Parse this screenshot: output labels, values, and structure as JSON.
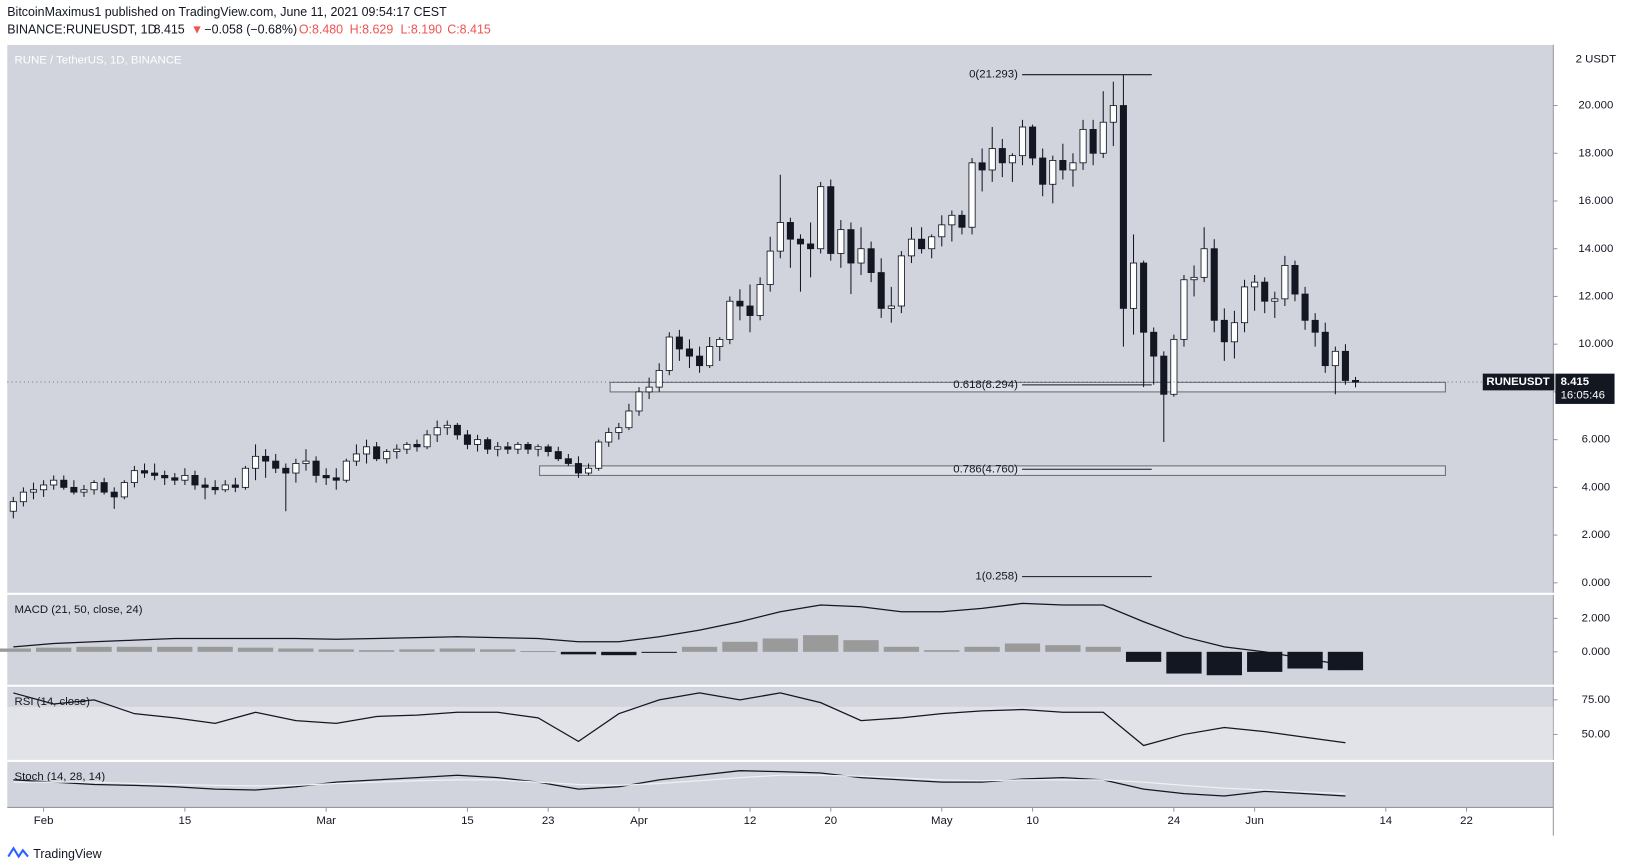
{
  "header": {
    "publisher": "BitcoinMaximus1 published on TradingView.com, June 11, 2021 09:54:17 CEST",
    "symbol": "BINANCE:RUNEUSDT, 1D",
    "last": "8.415",
    "arrow": "▼",
    "change": "−0.058 (−0.68%)",
    "ohlc": [
      "O:8.480",
      "H:8.629",
      "L:8.190",
      "C:8.415"
    ]
  },
  "footer": {
    "brand": "TradingView"
  },
  "chart_data": [
    {
      "type": "candlestick",
      "title": "RUNE / TetherUS, 1D, BINANCE",
      "unit_label": "2 USDT",
      "up_color": "#ffffff",
      "down_color": "#131722",
      "candles": [
        [
          3.0,
          3.6,
          2.7,
          3.4
        ],
        [
          3.4,
          4.0,
          3.2,
          3.8
        ],
        [
          3.8,
          4.2,
          3.5,
          3.9
        ],
        [
          3.9,
          4.3,
          3.6,
          4.1
        ],
        [
          4.1,
          4.5,
          3.9,
          4.3
        ],
        [
          4.3,
          4.5,
          3.9,
          4.0
        ],
        [
          4.0,
          4.3,
          3.7,
          3.8
        ],
        [
          3.8,
          4.1,
          3.6,
          3.9
        ],
        [
          3.9,
          4.3,
          3.7,
          4.2
        ],
        [
          4.2,
          4.4,
          3.7,
          3.8
        ],
        [
          3.8,
          4.0,
          3.1,
          3.6
        ],
        [
          3.6,
          4.3,
          3.5,
          4.2
        ],
        [
          4.2,
          4.9,
          4.0,
          4.7
        ],
        [
          4.7,
          5.0,
          4.4,
          4.6
        ],
        [
          4.6,
          5.0,
          4.3,
          4.5
        ],
        [
          4.5,
          4.7,
          4.1,
          4.4
        ],
        [
          4.4,
          4.6,
          4.1,
          4.3
        ],
        [
          4.3,
          4.8,
          4.1,
          4.5
        ],
        [
          4.5,
          4.7,
          3.9,
          4.1
        ],
        [
          4.1,
          4.4,
          3.5,
          4.0
        ],
        [
          4.0,
          4.3,
          3.7,
          3.9
        ],
        [
          3.9,
          4.3,
          3.8,
          4.1
        ],
        [
          4.1,
          4.4,
          3.8,
          4.0
        ],
        [
          4.0,
          4.9,
          3.9,
          4.8
        ],
        [
          4.8,
          5.8,
          4.3,
          5.3
        ],
        [
          5.3,
          5.6,
          4.4,
          5.1
        ],
        [
          5.1,
          5.4,
          4.6,
          4.8
        ],
        [
          4.8,
          5.0,
          3.0,
          4.6
        ],
        [
          4.6,
          5.2,
          4.2,
          5.0
        ],
        [
          5.0,
          5.6,
          4.7,
          5.1
        ],
        [
          5.1,
          5.3,
          4.2,
          4.5
        ],
        [
          4.5,
          4.8,
          4.1,
          4.4
        ],
        [
          4.4,
          4.8,
          3.9,
          4.3
        ],
        [
          4.3,
          5.2,
          4.2,
          5.1
        ],
        [
          5.1,
          5.8,
          4.9,
          5.4
        ],
        [
          5.4,
          6.0,
          5.0,
          5.7
        ],
        [
          5.7,
          5.9,
          5.1,
          5.2
        ],
        [
          5.2,
          5.6,
          5.0,
          5.5
        ],
        [
          5.5,
          5.8,
          5.2,
          5.6
        ],
        [
          5.6,
          5.9,
          5.4,
          5.8
        ],
        [
          5.8,
          6.0,
          5.5,
          5.7
        ],
        [
          5.7,
          6.4,
          5.6,
          6.2
        ],
        [
          6.2,
          6.8,
          5.9,
          6.5
        ],
        [
          6.5,
          6.8,
          6.2,
          6.6
        ],
        [
          6.6,
          6.7,
          6.0,
          6.2
        ],
        [
          6.2,
          6.4,
          5.6,
          5.8
        ],
        [
          5.8,
          6.2,
          5.5,
          6.0
        ],
        [
          6.0,
          6.1,
          5.4,
          5.6
        ],
        [
          5.6,
          5.9,
          5.3,
          5.7
        ],
        [
          5.7,
          5.9,
          5.4,
          5.6
        ],
        [
          5.6,
          5.9,
          5.4,
          5.8
        ],
        [
          5.8,
          5.9,
          5.4,
          5.6
        ],
        [
          5.6,
          5.8,
          5.3,
          5.7
        ],
        [
          5.7,
          5.8,
          5.3,
          5.5
        ],
        [
          5.5,
          5.7,
          5.1,
          5.2
        ],
        [
          5.2,
          5.4,
          4.9,
          5.0
        ],
        [
          5.0,
          5.3,
          4.4,
          4.6
        ],
        [
          4.6,
          5.0,
          4.5,
          4.8
        ],
        [
          4.8,
          6.0,
          4.7,
          5.9
        ],
        [
          5.9,
          6.5,
          5.7,
          6.3
        ],
        [
          6.3,
          6.7,
          6.0,
          6.5
        ],
        [
          6.5,
          7.5,
          6.4,
          7.2
        ],
        [
          7.2,
          8.2,
          7.0,
          8.0
        ],
        [
          8.0,
          8.6,
          7.7,
          8.2
        ],
        [
          8.2,
          9.2,
          8.0,
          8.9
        ],
        [
          8.9,
          10.5,
          8.7,
          10.3
        ],
        [
          10.3,
          10.6,
          9.3,
          9.8
        ],
        [
          9.8,
          10.2,
          9.0,
          9.5
        ],
        [
          9.5,
          9.9,
          8.8,
          9.1
        ],
        [
          9.1,
          10.3,
          9.0,
          9.9
        ],
        [
          9.9,
          10.3,
          9.3,
          10.2
        ],
        [
          10.2,
          12.0,
          10.0,
          11.8
        ],
        [
          11.8,
          12.3,
          11.0,
          11.6
        ],
        [
          11.6,
          12.5,
          10.5,
          11.2
        ],
        [
          11.2,
          12.8,
          11.0,
          12.5
        ],
        [
          12.5,
          14.5,
          12.2,
          13.9
        ],
        [
          13.9,
          17.1,
          13.6,
          15.1
        ],
        [
          15.1,
          15.3,
          13.2,
          14.4
        ],
        [
          14.4,
          14.6,
          12.2,
          14.2
        ],
        [
          14.2,
          15.1,
          12.8,
          14.0
        ],
        [
          14.0,
          16.8,
          13.8,
          16.6
        ],
        [
          16.6,
          16.9,
          13.5,
          13.8
        ],
        [
          13.8,
          15.2,
          13.2,
          14.8
        ],
        [
          14.8,
          15.1,
          12.1,
          13.4
        ],
        [
          13.4,
          14.9,
          12.9,
          14.0
        ],
        [
          14.0,
          14.3,
          12.6,
          13.0
        ],
        [
          13.0,
          13.6,
          11.1,
          11.5
        ],
        [
          11.5,
          12.4,
          10.9,
          11.6
        ],
        [
          11.6,
          13.9,
          11.3,
          13.7
        ],
        [
          13.7,
          14.9,
          13.4,
          14.4
        ],
        [
          14.4,
          14.9,
          13.8,
          14.0
        ],
        [
          14.0,
          14.6,
          13.6,
          14.5
        ],
        [
          14.5,
          15.4,
          14.1,
          15.0
        ],
        [
          15.0,
          15.6,
          14.3,
          15.4
        ],
        [
          15.4,
          15.6,
          14.6,
          14.9
        ],
        [
          14.9,
          17.8,
          14.6,
          17.6
        ],
        [
          17.6,
          18.2,
          16.4,
          17.3
        ],
        [
          17.3,
          19.1,
          16.8,
          18.2
        ],
        [
          18.2,
          18.6,
          17.0,
          17.6
        ],
        [
          17.6,
          18.0,
          16.8,
          17.9
        ],
        [
          17.9,
          19.4,
          17.5,
          19.1
        ],
        [
          19.1,
          19.2,
          17.5,
          17.8
        ],
        [
          17.8,
          18.2,
          16.2,
          16.7
        ],
        [
          16.7,
          17.9,
          15.9,
          17.7
        ],
        [
          17.7,
          18.4,
          16.9,
          17.3
        ],
        [
          17.3,
          18.0,
          16.6,
          17.6
        ],
        [
          17.6,
          19.4,
          17.3,
          19.0
        ],
        [
          19.0,
          19.4,
          17.5,
          18.0
        ],
        [
          18.0,
          20.6,
          17.8,
          19.3
        ],
        [
          19.3,
          21.0,
          18.3,
          20.0
        ],
        [
          20.0,
          21.293,
          9.9,
          11.5
        ],
        [
          11.5,
          14.6,
          10.4,
          13.4
        ],
        [
          13.4,
          13.5,
          8.2,
          10.5
        ],
        [
          10.5,
          10.7,
          8.3,
          9.5
        ],
        [
          9.5,
          9.7,
          5.9,
          7.9
        ],
        [
          7.9,
          10.4,
          7.8,
          10.2
        ],
        [
          10.2,
          12.9,
          9.9,
          12.7
        ],
        [
          12.7,
          13.3,
          12.0,
          12.8
        ],
        [
          12.8,
          14.9,
          12.6,
          14.0
        ],
        [
          14.0,
          14.4,
          10.5,
          11.0
        ],
        [
          11.0,
          11.5,
          9.3,
          10.1
        ],
        [
          10.1,
          11.4,
          9.4,
          10.9
        ],
        [
          10.9,
          12.7,
          10.5,
          12.4
        ],
        [
          12.4,
          12.9,
          11.4,
          12.6
        ],
        [
          12.6,
          12.8,
          11.3,
          11.8
        ],
        [
          11.8,
          12.2,
          11.1,
          11.9
        ],
        [
          11.9,
          13.7,
          11.6,
          13.3
        ],
        [
          13.3,
          13.5,
          11.8,
          12.1
        ],
        [
          12.1,
          12.4,
          10.6,
          11.0
        ],
        [
          11.0,
          11.3,
          9.9,
          10.5
        ],
        [
          10.5,
          10.9,
          8.8,
          9.1
        ],
        [
          9.1,
          9.9,
          7.9,
          9.7
        ],
        [
          9.7,
          10.0,
          8.3,
          8.48
        ],
        [
          8.48,
          8.629,
          8.19,
          8.415
        ]
      ],
      "ylim": [
        -0.44,
        22.54
      ],
      "yticks": [
        {
          "value": 0,
          "label": "0.000"
        },
        {
          "value": 2,
          "label": "2.000"
        },
        {
          "value": 4,
          "label": "4.000"
        },
        {
          "value": 6,
          "label": "6.000"
        },
        {
          "value": 8,
          "label": "8.000"
        },
        {
          "value": 10,
          "label": "10.000"
        },
        {
          "value": 12,
          "label": "12.000"
        },
        {
          "value": 14,
          "label": "14.000"
        },
        {
          "value": 16,
          "label": "16.000"
        },
        {
          "value": 18,
          "label": "18.000"
        },
        {
          "value": 20,
          "label": "20.000"
        }
      ],
      "xlim": [
        -0.6,
        152.6
      ],
      "xticks": [
        {
          "value": 3,
          "label": "Feb"
        },
        {
          "value": 17,
          "label": "15"
        },
        {
          "value": 31,
          "label": "Mar"
        },
        {
          "value": 45,
          "label": "15"
        },
        {
          "value": 53,
          "label": "23"
        },
        {
          "value": 62,
          "label": "Apr"
        },
        {
          "value": 73,
          "label": "12"
        },
        {
          "value": 81,
          "label": "20"
        },
        {
          "value": 92,
          "label": "May"
        },
        {
          "value": 101,
          "label": "10"
        },
        {
          "value": 115,
          "label": "24"
        },
        {
          "value": 123,
          "label": "Jun"
        },
        {
          "value": 136,
          "label": "14"
        },
        {
          "value": 144,
          "label": "22"
        }
      ],
      "fib": [
        {
          "value": 21.293,
          "label": "0(21.293)"
        },
        {
          "value": 8.294,
          "label": "0.618(8.294)"
        },
        {
          "value": 4.76,
          "label": "0.786(4.760)"
        },
        {
          "value": 0.258,
          "label": "1(0.258)"
        }
      ],
      "zones": [
        [
          8.0,
          8.4
        ],
        [
          4.5,
          4.9
        ]
      ],
      "price_tag": {
        "label": "RUNEUSDT",
        "value": 8.415,
        "countdown": "16:05:46"
      }
    },
    {
      "type": "macd",
      "title": "MACD (21, 50, close, 24)",
      "ylim": [
        -2.0,
        3.44
      ],
      "yticks": [
        {
          "value": 2,
          "label": "2.000"
        },
        {
          "value": 0,
          "label": "0.000"
        }
      ],
      "x": [
        0,
        4,
        8,
        12,
        16,
        20,
        24,
        28,
        32,
        36,
        40,
        44,
        48,
        52,
        56,
        60,
        64,
        68,
        72,
        76,
        80,
        84,
        88,
        92,
        96,
        100,
        104,
        108,
        112,
        116,
        120,
        124,
        128,
        132
      ],
      "line": {
        "color": "#131722",
        "values": [
          0.3,
          0.5,
          0.6,
          0.7,
          0.8,
          0.8,
          0.8,
          0.8,
          0.75,
          0.8,
          0.85,
          0.9,
          0.85,
          0.8,
          0.6,
          0.6,
          0.9,
          1.3,
          1.8,
          2.4,
          2.8,
          2.7,
          2.4,
          2.4,
          2.6,
          2.9,
          2.8,
          2.8,
          1.8,
          0.9,
          0.3,
          0.0,
          -0.4,
          -0.8
        ]
      },
      "histogram": {
        "up_color": "#9a9a9a",
        "down_color": "#131722",
        "values": [
          0.2,
          0.25,
          0.3,
          0.3,
          0.3,
          0.3,
          0.25,
          0.2,
          0.15,
          0.1,
          0.15,
          0.2,
          0.15,
          0.05,
          -0.15,
          -0.2,
          -0.05,
          0.3,
          0.6,
          0.8,
          1.0,
          0.7,
          0.3,
          0.1,
          0.3,
          0.5,
          0.4,
          0.3,
          -0.6,
          -1.3,
          -1.4,
          -1.2,
          -1.0,
          -1.1
        ]
      }
    },
    {
      "type": "line",
      "title": "RSI (14, close)",
      "ylim": [
        31.2,
        84.8
      ],
      "band": [
        30,
        70
      ],
      "yticks": [
        {
          "value": 75,
          "label": "75.00"
        },
        {
          "value": 50,
          "label": "50.00"
        }
      ],
      "x": [
        0,
        4,
        8,
        12,
        16,
        20,
        24,
        28,
        32,
        36,
        40,
        44,
        48,
        52,
        56,
        60,
        64,
        68,
        72,
        76,
        80,
        84,
        88,
        92,
        96,
        100,
        104,
        108,
        112,
        116,
        120,
        124,
        128,
        132
      ],
      "series": [
        {
          "color": "#131722",
          "values": [
            80,
            72,
            75,
            65,
            62,
            58,
            66,
            60,
            58,
            63,
            64,
            66,
            66,
            62,
            45,
            65,
            75,
            80,
            75,
            80,
            73,
            60,
            62,
            65,
            67,
            68,
            66,
            66,
            42,
            50,
            55,
            52,
            48,
            44
          ]
        }
      ]
    },
    {
      "type": "line",
      "title": "Stoch (14, 28, 14)",
      "ylim": [
        0,
        100
      ],
      "x": [
        0,
        4,
        8,
        12,
        16,
        20,
        24,
        28,
        32,
        36,
        40,
        44,
        48,
        52,
        56,
        60,
        64,
        68,
        72,
        76,
        80,
        84,
        88,
        92,
        96,
        100,
        104,
        108,
        112,
        116,
        120,
        124,
        128,
        132
      ],
      "series": [
        {
          "color": "#131722",
          "values": [
            60,
            55,
            50,
            48,
            45,
            40,
            38,
            45,
            55,
            60,
            65,
            70,
            65,
            55,
            40,
            45,
            60,
            70,
            80,
            78,
            75,
            65,
            60,
            55,
            55,
            62,
            65,
            60,
            40,
            30,
            25,
            35,
            30,
            25
          ]
        },
        {
          "color": "#f0f0f0",
          "values": [
            55,
            55,
            55,
            52,
            50,
            48,
            47,
            48,
            52,
            55,
            58,
            60,
            60,
            55,
            50,
            48,
            52,
            58,
            65,
            70,
            70,
            68,
            64,
            60,
            58,
            60,
            60,
            60,
            55,
            48,
            42,
            38,
            34,
            30
          ]
        }
      ]
    }
  ]
}
